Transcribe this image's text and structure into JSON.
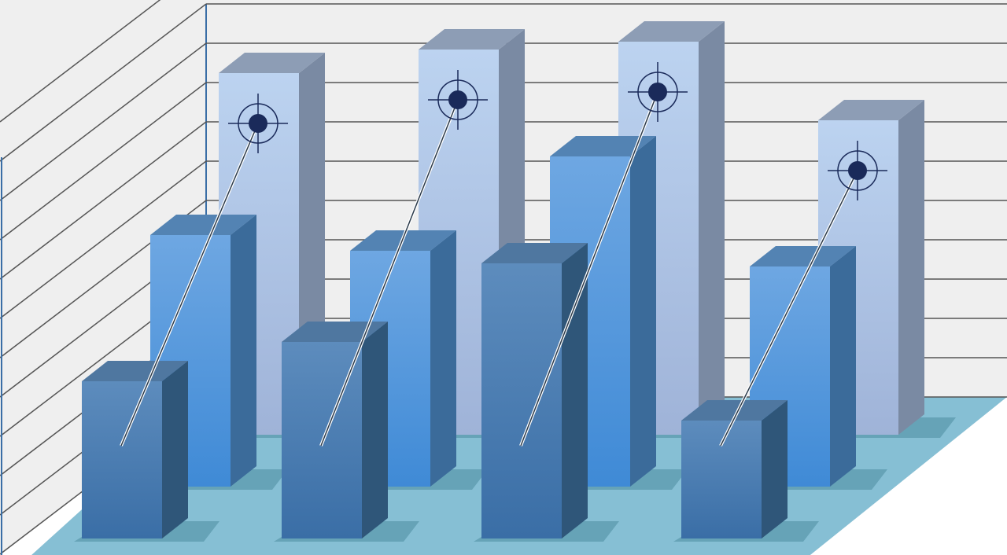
{
  "chart_data": {
    "type": "bar",
    "style": "3d-clustered",
    "categories": [
      "",
      "",
      "",
      ""
    ],
    "series": [
      {
        "values": [
          9.2,
          9.8,
          10.0,
          8.0
        ],
        "color": "#b3cbe9"
      },
      {
        "values": [
          6.4,
          6.0,
          8.4,
          5.6
        ],
        "color": "#5a9ee0"
      },
      {
        "values": [
          4.0,
          5.0,
          7.0,
          3.0
        ],
        "color": "#4a7fb5"
      }
    ],
    "ylim": [
      0,
      11
    ],
    "grid": true,
    "markers": "target-crosshair",
    "colors": {
      "wall": "#efefef",
      "grid": "#555555",
      "floor": "#86bfd4",
      "target": "#1a2a5a"
    }
  }
}
